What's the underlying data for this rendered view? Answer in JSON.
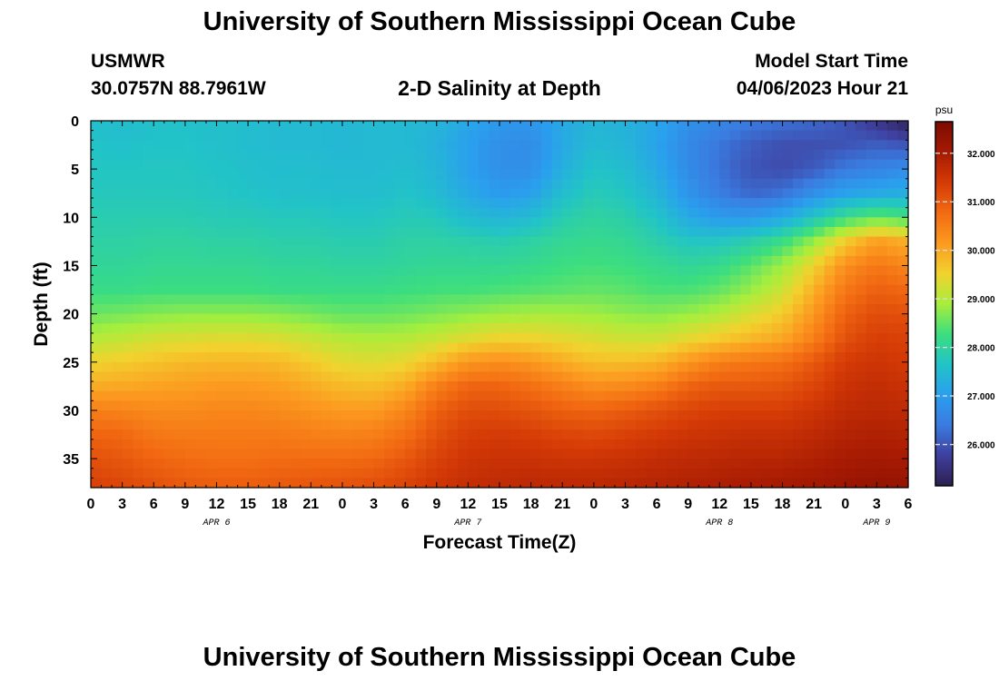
{
  "header": {
    "title": "University of Southern Mississippi Ocean Cube",
    "station": "USMWR",
    "coordinates": "30.0757N  88.7961W",
    "subtitle": "2-D Salinity at Depth",
    "model_start_label": "Model Start Time",
    "model_start_value": "04/06/2023 Hour 21"
  },
  "footer": {
    "title": "University of Southern Mississippi Ocean Cube"
  },
  "chart_data": {
    "type": "heatmap",
    "title": "2-D Salinity at Depth",
    "xlabel": "Forecast Time(Z)",
    "ylabel": "Depth (ft)",
    "xlim": [
      0,
      78
    ],
    "ylim": [
      38,
      0
    ],
    "x_ticks": [
      {
        "x": 0,
        "label": "0"
      },
      {
        "x": 3,
        "label": "3"
      },
      {
        "x": 6,
        "label": "6"
      },
      {
        "x": 9,
        "label": "9"
      },
      {
        "x": 12,
        "label": "12"
      },
      {
        "x": 15,
        "label": "15"
      },
      {
        "x": 18,
        "label": "18"
      },
      {
        "x": 21,
        "label": "21"
      },
      {
        "x": 24,
        "label": "0"
      },
      {
        "x": 27,
        "label": "3"
      },
      {
        "x": 30,
        "label": "6"
      },
      {
        "x": 33,
        "label": "9"
      },
      {
        "x": 36,
        "label": "12"
      },
      {
        "x": 39,
        "label": "15"
      },
      {
        "x": 42,
        "label": "18"
      },
      {
        "x": 45,
        "label": "21"
      },
      {
        "x": 48,
        "label": "0"
      },
      {
        "x": 51,
        "label": "3"
      },
      {
        "x": 54,
        "label": "6"
      },
      {
        "x": 57,
        "label": "9"
      },
      {
        "x": 60,
        "label": "12"
      },
      {
        "x": 63,
        "label": "15"
      },
      {
        "x": 66,
        "label": "18"
      },
      {
        "x": 69,
        "label": "21"
      },
      {
        "x": 72,
        "label": "0"
      },
      {
        "x": 75,
        "label": "3"
      },
      {
        "x": 78,
        "label": "6"
      }
    ],
    "date_labels": [
      {
        "x": 12,
        "label": "APR 6"
      },
      {
        "x": 36,
        "label": "APR 7"
      },
      {
        "x": 60,
        "label": "APR 8"
      },
      {
        "x": 75,
        "label": "APR 9"
      }
    ],
    "y_ticks": [
      0,
      5,
      10,
      15,
      20,
      25,
      30,
      35
    ],
    "colorbar": {
      "unit": "psu",
      "min": 25.15,
      "max": 32.65,
      "ticks": [
        {
          "value": 26.0,
          "label": "26.000"
        },
        {
          "value": 27.0,
          "label": "27.000"
        },
        {
          "value": 28.0,
          "label": "28.000"
        },
        {
          "value": 29.0,
          "label": "29.000"
        },
        {
          "value": 30.0,
          "label": "30.000"
        },
        {
          "value": 31.0,
          "label": "31.000"
        },
        {
          "value": 32.0,
          "label": "32.000"
        }
      ],
      "colors": [
        "#2c1f4f",
        "#3f3f9e",
        "#3a7be0",
        "#2a9fee",
        "#22c3c8",
        "#3cde7e",
        "#a8ee3c",
        "#f2d22e",
        "#fc9a20",
        "#f26a12",
        "#d43a06",
        "#a61a03",
        "#7c0b01"
      ]
    },
    "x": [
      0,
      3,
      6,
      9,
      12,
      15,
      18,
      21,
      24,
      27,
      30,
      33,
      36,
      39,
      42,
      45,
      48,
      51,
      54,
      57,
      60,
      63,
      66,
      69,
      72,
      75,
      78
    ],
    "depths": [
      0,
      2.5,
      5,
      7.5,
      10,
      12.5,
      15,
      17.5,
      20,
      22.5,
      25,
      27.5,
      30,
      32.5,
      35,
      38
    ],
    "z": [
      [
        27.6,
        27.55,
        27.6,
        27.6,
        27.6,
        27.55,
        27.5,
        27.5,
        27.45,
        27.5,
        27.5,
        27.4,
        27.15,
        26.9,
        26.85,
        27.2,
        27.4,
        27.35,
        27.15,
        26.8,
        26.6,
        26.4,
        26.3,
        26.2,
        26.0,
        25.6,
        25.2
      ],
      [
        27.65,
        27.6,
        27.65,
        27.65,
        27.6,
        27.55,
        27.5,
        27.5,
        27.45,
        27.5,
        27.5,
        27.35,
        27.05,
        26.75,
        26.7,
        27.2,
        27.5,
        27.4,
        27.1,
        26.65,
        26.35,
        26.1,
        25.95,
        25.95,
        26.0,
        26.1,
        26.0
      ],
      [
        27.7,
        27.7,
        27.7,
        27.7,
        27.65,
        27.6,
        27.55,
        27.55,
        27.5,
        27.5,
        27.55,
        27.4,
        27.05,
        26.75,
        26.75,
        27.3,
        27.65,
        27.55,
        27.2,
        26.7,
        26.3,
        26.0,
        25.9,
        26.05,
        26.4,
        26.55,
        26.7
      ],
      [
        27.75,
        27.75,
        27.75,
        27.75,
        27.7,
        27.65,
        27.6,
        27.6,
        27.55,
        27.55,
        27.65,
        27.5,
        27.2,
        26.95,
        27.05,
        27.55,
        27.8,
        27.7,
        27.4,
        26.85,
        26.45,
        26.2,
        26.3,
        26.75,
        27.1,
        27.2,
        27.3
      ],
      [
        27.85,
        27.85,
        27.85,
        27.85,
        27.8,
        27.8,
        27.75,
        27.75,
        27.7,
        27.7,
        27.8,
        27.75,
        27.5,
        27.4,
        27.5,
        27.85,
        28.0,
        27.9,
        27.65,
        27.2,
        26.95,
        26.95,
        27.2,
        27.7,
        28.2,
        28.5,
        28.3
      ],
      [
        27.95,
        27.95,
        28.0,
        28.0,
        27.95,
        27.95,
        27.9,
        27.9,
        27.85,
        27.85,
        27.95,
        27.95,
        27.9,
        27.85,
        27.95,
        28.1,
        28.15,
        28.1,
        27.9,
        27.7,
        27.7,
        27.9,
        28.2,
        28.8,
        29.6,
        30.1,
        29.9
      ],
      [
        28.05,
        28.05,
        28.1,
        28.1,
        28.1,
        28.1,
        28.05,
        28.05,
        28.0,
        28.0,
        28.05,
        28.1,
        28.1,
        28.1,
        28.15,
        28.25,
        28.3,
        28.25,
        28.15,
        28.05,
        28.15,
        28.45,
        28.85,
        29.5,
        30.3,
        30.6,
        30.4
      ],
      [
        28.2,
        28.2,
        28.25,
        28.25,
        28.25,
        28.25,
        28.2,
        28.2,
        28.2,
        28.2,
        28.25,
        28.3,
        28.3,
        28.35,
        28.4,
        28.45,
        28.5,
        28.45,
        28.35,
        28.35,
        28.5,
        28.8,
        29.2,
        29.9,
        30.6,
        30.9,
        30.8
      ],
      [
        28.55,
        28.6,
        28.7,
        28.75,
        28.75,
        28.75,
        28.7,
        28.6,
        28.5,
        28.5,
        28.55,
        28.65,
        28.75,
        28.85,
        28.9,
        28.9,
        28.85,
        28.75,
        28.7,
        28.8,
        29.0,
        29.3,
        29.6,
        30.2,
        30.9,
        31.15,
        31.1
      ],
      [
        29.0,
        29.1,
        29.25,
        29.3,
        29.35,
        29.35,
        29.3,
        29.15,
        29.0,
        28.95,
        29.0,
        29.15,
        29.35,
        29.5,
        29.5,
        29.4,
        29.3,
        29.2,
        29.2,
        29.4,
        29.6,
        29.8,
        30.0,
        30.5,
        31.1,
        31.35,
        31.3
      ],
      [
        29.5,
        29.6,
        29.7,
        29.8,
        29.85,
        29.85,
        29.8,
        29.6,
        29.4,
        29.35,
        29.45,
        29.8,
        30.2,
        30.3,
        30.2,
        29.95,
        29.75,
        29.75,
        29.85,
        30.2,
        30.5,
        30.6,
        30.7,
        31.0,
        31.4,
        31.5,
        31.4
      ],
      [
        29.95,
        30.0,
        30.05,
        30.1,
        30.15,
        30.15,
        30.1,
        29.95,
        29.8,
        29.75,
        29.95,
        30.5,
        30.85,
        30.85,
        30.7,
        30.5,
        30.3,
        30.35,
        30.5,
        30.85,
        31.0,
        31.0,
        31.05,
        31.25,
        31.55,
        31.65,
        31.55
      ],
      [
        30.5,
        30.45,
        30.35,
        30.35,
        30.4,
        30.4,
        30.35,
        30.25,
        30.15,
        30.15,
        30.4,
        30.9,
        31.15,
        31.15,
        31.05,
        30.9,
        30.85,
        30.95,
        31.1,
        31.25,
        31.35,
        31.35,
        31.35,
        31.5,
        31.7,
        31.75,
        31.7
      ],
      [
        30.85,
        30.8,
        30.6,
        30.55,
        30.55,
        30.55,
        30.55,
        30.5,
        30.45,
        30.5,
        30.7,
        31.1,
        31.35,
        31.4,
        31.35,
        31.25,
        31.2,
        31.3,
        31.4,
        31.5,
        31.55,
        31.6,
        31.6,
        31.7,
        31.85,
        31.9,
        31.85
      ],
      [
        31.1,
        31.0,
        30.85,
        30.75,
        30.7,
        30.7,
        30.75,
        30.75,
        30.75,
        30.8,
        31.0,
        31.3,
        31.5,
        31.55,
        31.55,
        31.5,
        31.5,
        31.55,
        31.65,
        31.7,
        31.75,
        31.8,
        31.8,
        31.9,
        32.0,
        32.05,
        32.0
      ],
      [
        31.35,
        31.25,
        31.1,
        31.0,
        30.95,
        30.95,
        31.0,
        31.05,
        31.1,
        31.15,
        31.3,
        31.5,
        31.65,
        31.7,
        31.75,
        31.75,
        31.75,
        31.8,
        31.85,
        31.9,
        31.95,
        32.0,
        32.05,
        32.1,
        32.2,
        32.3,
        32.3
      ]
    ]
  }
}
